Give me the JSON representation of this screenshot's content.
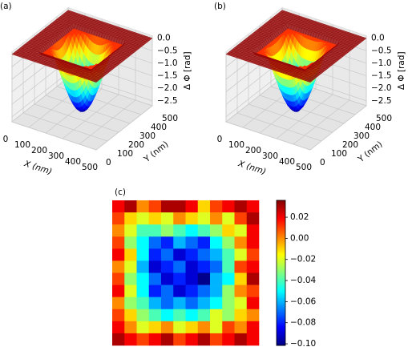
{
  "chart_data": [
    {
      "type": "surface3d",
      "panel_label": "(a)",
      "xlabel": "X (nm)",
      "ylabel": "Y (nm)",
      "zlabel": "Δ Φ [rad]",
      "xlim": [
        0,
        500
      ],
      "ylim": [
        0,
        500
      ],
      "zlim": [
        -2.7,
        0.1
      ],
      "xticks": [
        0,
        100,
        200,
        300,
        400,
        500
      ],
      "yticks": [
        0,
        100,
        200,
        300,
        400,
        500
      ],
      "zticks": [
        {
          "value": 0,
          "label": "0.0"
        },
        {
          "value": -0.5,
          "label": "−0.5"
        },
        {
          "value": -1,
          "label": "−1.0"
        },
        {
          "value": -1.5,
          "label": "−1.5"
        },
        {
          "value": -2,
          "label": "−2.0"
        },
        {
          "value": -2.5,
          "label": "−2.5"
        }
      ],
      "colormap": "jet",
      "grid": true
    },
    {
      "type": "surface3d",
      "panel_label": "(b)",
      "xlabel": "X (nm)",
      "ylabel": "Y (nm)",
      "zlabel": "Δ Φ [rad]",
      "xlim": [
        0,
        500
      ],
      "ylim": [
        0,
        500
      ],
      "zlim": [
        -2.7,
        0.1
      ],
      "xticks": [
        0,
        100,
        200,
        300,
        400,
        500
      ],
      "yticks": [
        0,
        100,
        200,
        300,
        400,
        500
      ],
      "zticks": [
        {
          "value": 0,
          "label": "0.0"
        },
        {
          "value": -0.5,
          "label": "−0.5"
        },
        {
          "value": -1,
          "label": "−1.0"
        },
        {
          "value": -1.5,
          "label": "−1.5"
        },
        {
          "value": -2,
          "label": "−2.0"
        },
        {
          "value": -2.5,
          "label": "−2.5"
        }
      ],
      "colormap": "jet",
      "grid": true
    },
    {
      "type": "heatmap",
      "panel_label": "(c)",
      "colormap": "jet",
      "clim": [
        -0.1015,
        0.036
      ],
      "cticks": [
        {
          "value": 0.02,
          "label": "0.02"
        },
        {
          "value": 0,
          "label": "0.00"
        },
        {
          "value": -0.02,
          "label": "−0.02"
        },
        {
          "value": -0.04,
          "label": "−0.04"
        },
        {
          "value": -0.06,
          "label": "−0.06"
        },
        {
          "value": -0.08,
          "label": "−0.08"
        },
        {
          "value": -0.1,
          "label": "−0.10"
        }
      ],
      "z": [
        [
          0.02,
          0.03,
          0.0,
          0.01,
          0.03,
          0.03,
          0.02,
          -0.01,
          0.01,
          0.02,
          0.03,
          0.02
        ],
        [
          0.01,
          -0.01,
          -0.02,
          -0.01,
          -0.02,
          0.0,
          -0.01,
          -0.02,
          0.0,
          -0.02,
          0.01,
          0.03
        ],
        [
          0.0,
          -0.02,
          -0.04,
          -0.04,
          -0.03,
          -0.04,
          -0.05,
          -0.04,
          -0.03,
          -0.01,
          -0.02,
          0.02
        ],
        [
          0.01,
          -0.03,
          -0.05,
          -0.07,
          -0.08,
          -0.06,
          -0.07,
          -0.08,
          -0.05,
          -0.03,
          0.0,
          0.02
        ],
        [
          0.02,
          -0.01,
          -0.05,
          -0.08,
          -0.07,
          -0.09,
          -0.08,
          -0.07,
          -0.06,
          -0.04,
          -0.02,
          0.01
        ],
        [
          0.0,
          -0.02,
          -0.06,
          -0.09,
          -0.08,
          -0.07,
          -0.09,
          -0.08,
          -0.07,
          -0.04,
          0.01,
          0.02
        ],
        [
          0.01,
          -0.03,
          -0.05,
          -0.07,
          -0.09,
          -0.08,
          -0.09,
          -0.1,
          -0.06,
          -0.05,
          -0.01,
          0.03
        ],
        [
          0.02,
          -0.02,
          -0.05,
          -0.08,
          -0.07,
          -0.09,
          -0.08,
          -0.07,
          -0.06,
          -0.03,
          0.0,
          0.01
        ],
        [
          0.0,
          -0.03,
          -0.04,
          -0.06,
          -0.07,
          -0.06,
          -0.07,
          -0.06,
          -0.05,
          -0.03,
          -0.02,
          0.02
        ],
        [
          0.01,
          -0.01,
          -0.03,
          -0.04,
          -0.05,
          -0.04,
          -0.05,
          -0.04,
          -0.02,
          -0.03,
          -0.01,
          0.0
        ],
        [
          0.02,
          0.0,
          -0.02,
          -0.01,
          0.0,
          -0.02,
          -0.01,
          0.0,
          -0.02,
          0.01,
          0.0,
          0.02
        ],
        [
          0.03,
          0.02,
          0.01,
          0.02,
          0.03,
          0.01,
          0.02,
          0.03,
          0.01,
          0.02,
          0.03,
          0.02
        ]
      ]
    }
  ]
}
